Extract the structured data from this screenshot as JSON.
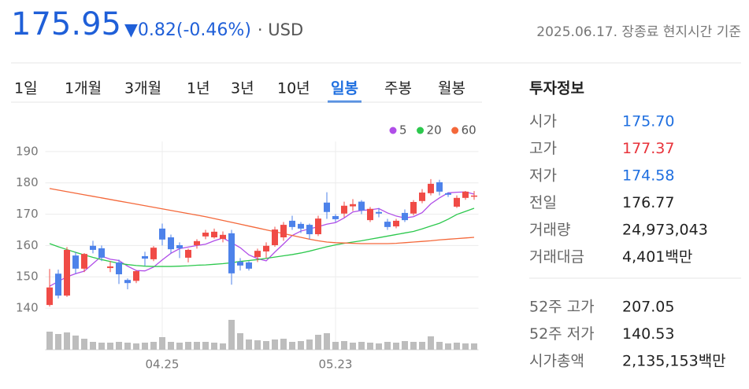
{
  "quote": {
    "price": "175.95",
    "change": "▼0.82(-0.46%)",
    "currency": "· USD",
    "timestamp": "2025.06.17. 장종료 현지시간 기준"
  },
  "tabs": {
    "items": [
      "1일",
      "1개월",
      "3개월",
      "1년",
      "3년",
      "10년",
      "일봉",
      "주봉",
      "월봉"
    ],
    "selected": 6
  },
  "info": {
    "title": "투자정보",
    "rows": [
      {
        "label": "시가",
        "value": "175.70",
        "color": "#1f6fe0"
      },
      {
        "label": "고가",
        "value": "177.37",
        "color": "#e8333b"
      },
      {
        "label": "저가",
        "value": "174.58",
        "color": "#1f6fe0"
      },
      {
        "label": "전일",
        "value": "176.77",
        "color": "#222222"
      },
      {
        "label": "거래량",
        "value": "24,973,043",
        "color": "#222222"
      },
      {
        "label": "거래대금",
        "value": "4,401백만",
        "color": "#222222"
      }
    ],
    "rows2": [
      {
        "label": "52주 고가",
        "value": "207.05",
        "color": "#222222"
      },
      {
        "label": "52주 저가",
        "value": "140.53",
        "color": "#222222"
      },
      {
        "label": "시가총액",
        "value": "2,135,153백만",
        "color": "#222222"
      }
    ]
  },
  "chart_data": {
    "type": "candlestick",
    "categories": [
      null,
      null,
      null,
      null,
      null,
      null,
      null,
      null,
      null,
      null,
      null,
      null,
      null,
      "04.25",
      null,
      null,
      null,
      null,
      null,
      null,
      null,
      null,
      null,
      null,
      null,
      null,
      null,
      null,
      null,
      null,
      null,
      null,
      null,
      "05.23",
      null,
      null,
      null,
      null,
      null,
      null,
      null,
      null,
      null,
      null,
      null,
      null,
      null,
      null,
      null,
      null
    ],
    "open": [
      141.0,
      151.0,
      144.0,
      156.8,
      152.6,
      159.9,
      159.1,
      152.8,
      154.6,
      149.0,
      148.7,
      156.6,
      155.6,
      165.4,
      162.6,
      160.1,
      156.1,
      160.1,
      162.9,
      162.6,
      162.1,
      163.9,
      154.8,
      154.6,
      156.3,
      158.1,
      160.1,
      162.6,
      167.9,
      166.9,
      166.6,
      163.6,
      173.7,
      169.4,
      170.2,
      172.5,
      174.0,
      168.1,
      170.7,
      167.6,
      166.1,
      170.4,
      170.2,
      174.2,
      176.7,
      180.2,
      176.7,
      172.4,
      175.2,
      175.7
    ],
    "high": [
      152.5,
      152.3,
      159.5,
      158.0,
      157.6,
      161.5,
      160.0,
      155.0,
      155.5,
      149.5,
      152.1,
      158.0,
      159.8,
      167.0,
      163.5,
      161.0,
      159.0,
      162.0,
      165.0,
      165.4,
      164.5,
      165.0,
      156.0,
      155.0,
      159.0,
      161.0,
      166.0,
      167.5,
      169.5,
      167.5,
      167.0,
      169.5,
      177.0,
      170.0,
      174.0,
      174.8,
      174.5,
      172.3,
      172.0,
      168.5,
      168.5,
      171.5,
      174.5,
      178.0,
      181.2,
      181.0,
      177.0,
      176.0,
      177.4,
      177.37
    ],
    "low": [
      140.5,
      143.1,
      143.6,
      150.9,
      151.5,
      157.5,
      155.0,
      151.5,
      147.7,
      146.0,
      148.0,
      153.5,
      155.0,
      160.0,
      157.5,
      156.0,
      154.6,
      159.0,
      162.0,
      162.2,
      161.0,
      147.5,
      152.0,
      152.0,
      154.7,
      156.0,
      159.6,
      161.5,
      165.0,
      164.0,
      162.0,
      163.0,
      168.5,
      167.5,
      169.0,
      171.0,
      170.0,
      167.5,
      169.0,
      165.0,
      165.5,
      167.5,
      169.6,
      173.5,
      176.0,
      176.0,
      175.5,
      172.0,
      174.6,
      174.58
    ],
    "close": [
      146.6,
      144.0,
      158.6,
      152.6,
      157.3,
      158.6,
      156.1,
      153.3,
      150.8,
      148.0,
      151.8,
      155.8,
      159.3,
      161.9,
      158.8,
      159.1,
      158.6,
      161.4,
      164.1,
      164.4,
      163.4,
      151.1,
      153.6,
      152.6,
      158.3,
      159.9,
      165.1,
      166.6,
      165.9,
      165.4,
      163.6,
      168.6,
      170.7,
      168.4,
      172.7,
      173.2,
      171.2,
      171.7,
      170.2,
      165.9,
      167.9,
      168.1,
      173.9,
      176.9,
      179.7,
      177.2,
      176.2,
      175.2,
      177.2,
      175.95
    ],
    "volume": [
      23,
      20,
      22,
      18,
      14,
      10,
      9,
      9,
      10,
      9,
      8,
      9,
      10,
      16,
      10,
      9,
      10,
      10,
      10,
      9,
      8,
      38,
      21,
      13,
      12,
      11,
      13,
      14,
      10,
      11,
      13,
      19,
      21,
      10,
      11,
      9,
      10,
      9,
      8,
      10,
      9,
      11,
      10,
      10,
      17,
      10,
      8,
      9,
      8,
      8
    ],
    "series": [
      {
        "name": "5",
        "color": "#b04ee8",
        "values": [
          147.0,
          148.5,
          150.0,
          151.0,
          151.8,
          154.2,
          156.6,
          155.6,
          155.2,
          153.4,
          152.0,
          151.9,
          153.1,
          155.4,
          157.5,
          159.0,
          159.5,
          160.0,
          160.4,
          161.5,
          162.4,
          160.9,
          159.3,
          157.0,
          155.8,
          155.1,
          157.9,
          160.5,
          163.2,
          164.6,
          165.3,
          166.0,
          166.8,
          167.3,
          168.8,
          170.7,
          171.2,
          171.4,
          171.8,
          170.4,
          169.4,
          168.8,
          169.2,
          170.5,
          173.3,
          175.2,
          176.8,
          177.0,
          177.1,
          176.4
        ]
      },
      {
        "name": "20",
        "color": "#2cc84d",
        "values": [
          160.6,
          159.6,
          158.7,
          157.8,
          157.0,
          156.2,
          155.5,
          154.9,
          154.3,
          153.9,
          153.6,
          153.4,
          153.3,
          153.3,
          153.3,
          153.4,
          153.5,
          153.7,
          153.8,
          154.0,
          154.2,
          154.5,
          154.9,
          155.2,
          155.5,
          155.9,
          156.3,
          156.7,
          157.1,
          157.6,
          158.2,
          158.9,
          159.6,
          160.2,
          160.7,
          161.1,
          161.5,
          162.0,
          162.5,
          163.0,
          163.5,
          164.0,
          164.5,
          165.3,
          166.2,
          167.1,
          168.4,
          169.9,
          170.9,
          171.9
        ]
      },
      {
        "name": "60",
        "color": "#f4683a",
        "values": [
          178.2,
          177.7,
          177.2,
          176.7,
          176.2,
          175.7,
          175.2,
          174.7,
          174.2,
          173.7,
          173.2,
          172.7,
          172.2,
          171.7,
          171.2,
          170.7,
          170.2,
          169.7,
          169.2,
          168.6,
          168.0,
          167.4,
          166.8,
          166.2,
          165.6,
          165.0,
          164.4,
          163.8,
          163.2,
          162.6,
          162.0,
          161.5,
          161.1,
          160.9,
          160.8,
          160.7,
          160.6,
          160.6,
          160.6,
          160.6,
          160.7,
          160.9,
          161.1,
          161.3,
          161.5,
          161.8,
          162.0,
          162.2,
          162.4,
          162.6
        ]
      }
    ],
    "up_color": "#f04b46",
    "down_color": "#4d82ea",
    "volume_color": "#bdbdbd",
    "ylim": [
      135,
      200
    ],
    "yticks": [
      140,
      150,
      160,
      170,
      180,
      190
    ],
    "volume_ylim": [
      0,
      45
    ],
    "grid": true
  }
}
